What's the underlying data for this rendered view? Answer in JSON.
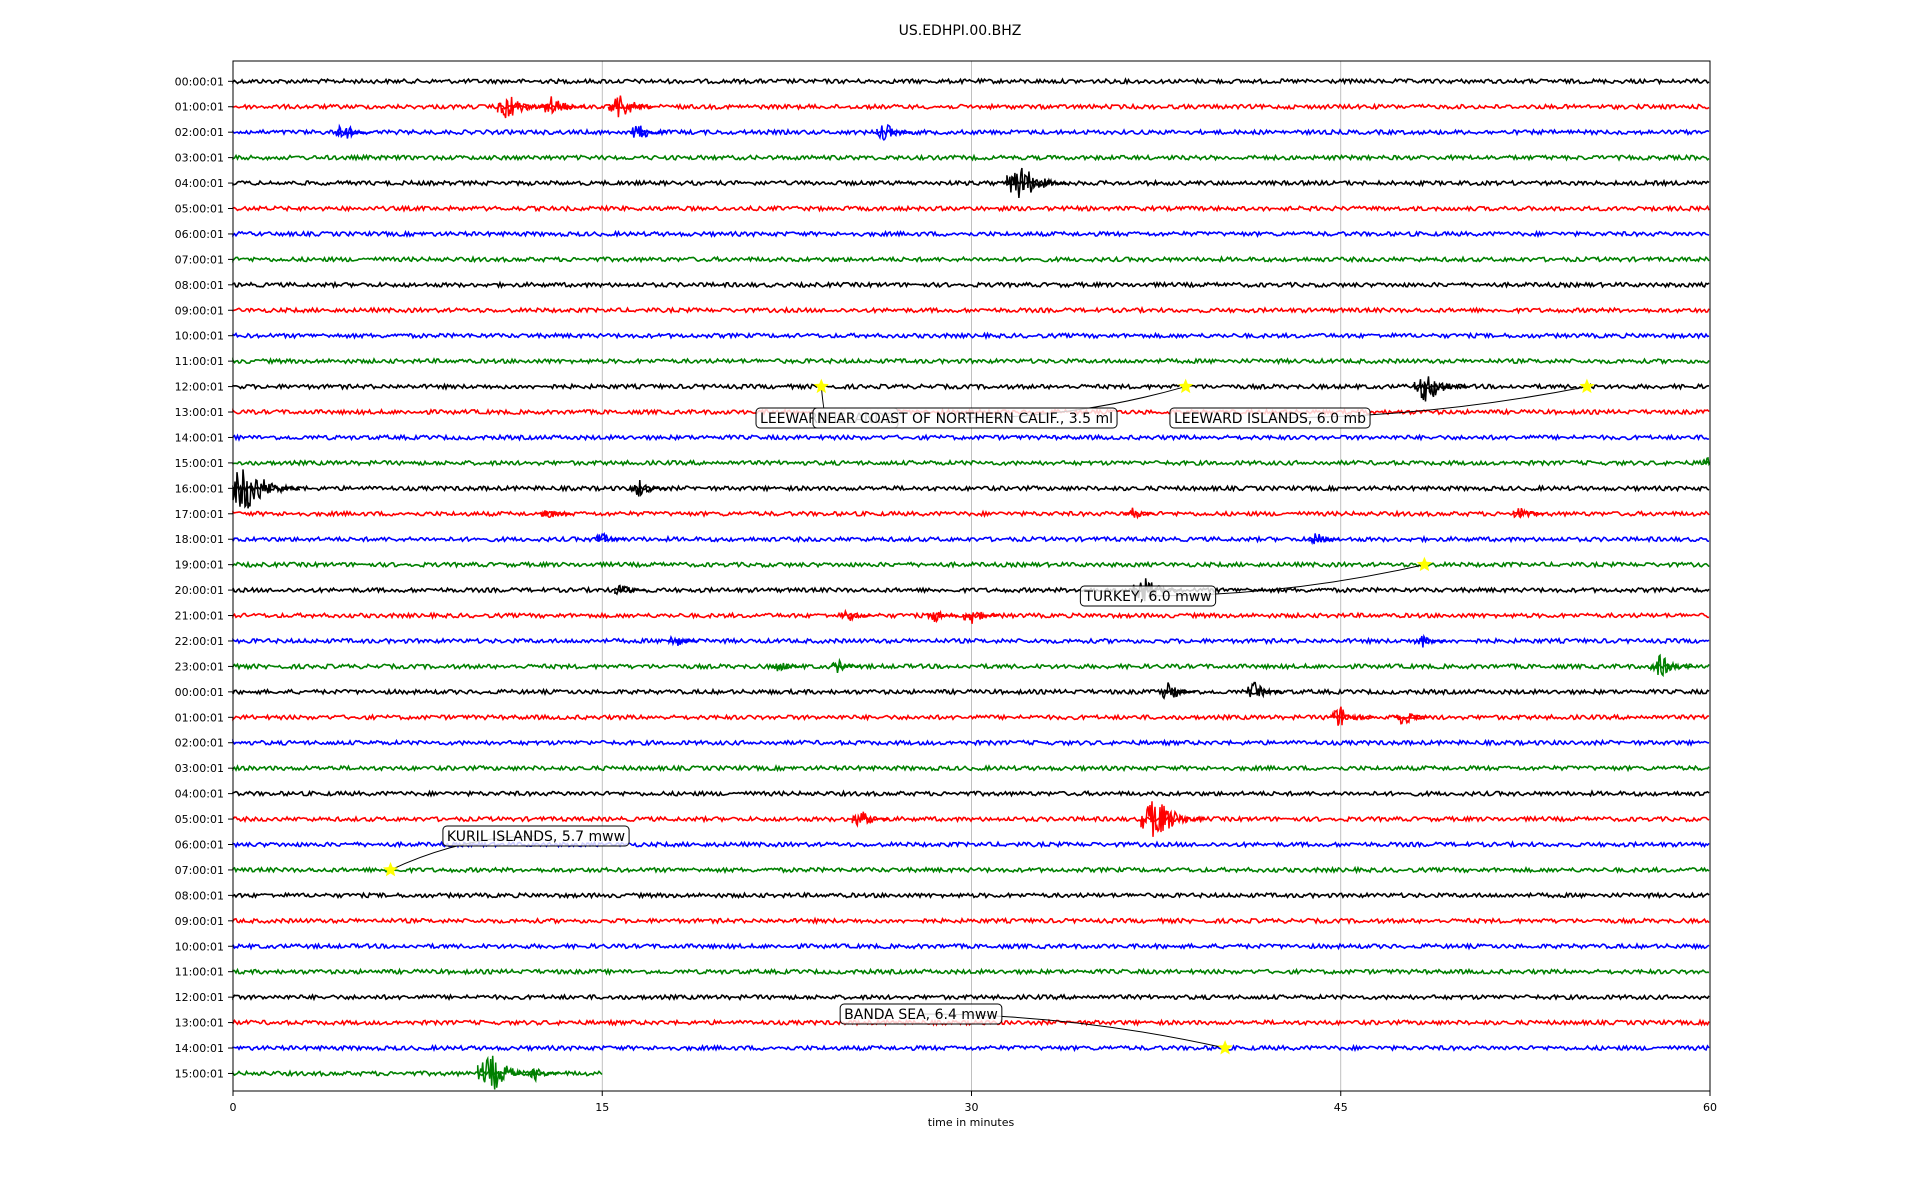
{
  "chart_data": {
    "type": "line",
    "title": "US.EDHPI.00.BHZ",
    "xlabel": "time in minutes",
    "xlim": [
      0,
      60
    ],
    "x_ticks": [
      "0",
      "15",
      "30",
      "45",
      "60"
    ],
    "grid": "vertical",
    "colors": [
      "#000000",
      "#ff0000",
      "#0000ff",
      "#008000"
    ],
    "row_labels": [
      "00:00:01",
      "01:00:01",
      "02:00:01",
      "03:00:01",
      "04:00:01",
      "05:00:01",
      "06:00:01",
      "07:00:01",
      "08:00:01",
      "09:00:01",
      "10:00:01",
      "11:00:01",
      "12:00:01",
      "13:00:01",
      "14:00:01",
      "15:00:01",
      "16:00:01",
      "17:00:01",
      "18:00:01",
      "19:00:01",
      "20:00:01",
      "21:00:01",
      "22:00:01",
      "23:00:01",
      "00:00:01",
      "01:00:01",
      "02:00:01",
      "03:00:01",
      "04:00:01",
      "05:00:01",
      "06:00:01",
      "07:00:01",
      "08:00:01",
      "09:00:01",
      "10:00:01",
      "11:00:01",
      "12:00:01",
      "13:00:01",
      "14:00:01",
      "15:00:01"
    ],
    "last_row_end_minute": 15,
    "bursts": [
      {
        "row": 1,
        "minute": 11.2,
        "amp": 3
      },
      {
        "row": 1,
        "minute": 13,
        "amp": 2.5
      },
      {
        "row": 1,
        "minute": 15.7,
        "amp": 3
      },
      {
        "row": 2,
        "minute": 4.5,
        "amp": 2
      },
      {
        "row": 2,
        "minute": 16.5,
        "amp": 2
      },
      {
        "row": 2,
        "minute": 26.5,
        "amp": 2
      },
      {
        "row": 4,
        "minute": 32,
        "amp": 4
      },
      {
        "row": 12,
        "minute": 48.5,
        "amp": 3.5
      },
      {
        "row": 15,
        "minute": 60,
        "amp": 1.5
      },
      {
        "row": 16,
        "minute": 0.5,
        "amp": 5
      },
      {
        "row": 16,
        "minute": 16.5,
        "amp": 2
      },
      {
        "row": 17,
        "minute": 12.8,
        "amp": 1.5
      },
      {
        "row": 17,
        "minute": 36.5,
        "amp": 1.5
      },
      {
        "row": 17,
        "minute": 52.3,
        "amp": 1.5
      },
      {
        "row": 18,
        "minute": 15,
        "amp": 1.5
      },
      {
        "row": 18,
        "minute": 44,
        "amp": 1.5
      },
      {
        "row": 20,
        "minute": 15.8,
        "amp": 1.5
      },
      {
        "row": 20,
        "minute": 37,
        "amp": 3
      },
      {
        "row": 21,
        "minute": 25,
        "amp": 1.5
      },
      {
        "row": 21,
        "minute": 28.5,
        "amp": 1.5
      },
      {
        "row": 21,
        "minute": 30,
        "amp": 2
      },
      {
        "row": 22,
        "minute": 18,
        "amp": 1.5
      },
      {
        "row": 22,
        "minute": 48.3,
        "amp": 1.5
      },
      {
        "row": 23,
        "minute": 22.2,
        "amp": 1.5
      },
      {
        "row": 23,
        "minute": 24.6,
        "amp": 1.5
      },
      {
        "row": 23,
        "minute": 58,
        "amp": 2.5
      },
      {
        "row": 24,
        "minute": 38,
        "amp": 2
      },
      {
        "row": 24,
        "minute": 41.5,
        "amp": 2
      },
      {
        "row": 25,
        "minute": 45,
        "amp": 2.5
      },
      {
        "row": 25,
        "minute": 47.5,
        "amp": 2
      },
      {
        "row": 29,
        "minute": 25.5,
        "amp": 2
      },
      {
        "row": 29,
        "minute": 37.5,
        "amp": 4.5
      },
      {
        "row": 39,
        "minute": 10.5,
        "amp": 4
      },
      {
        "row": 39,
        "minute": 12.3,
        "amp": 1.5
      }
    ],
    "annotations": [
      {
        "text": "LEEWARD ISLANDS",
        "row": 12,
        "minute": 23.9
      },
      {
        "text": "NEAR COAST OF NORTHERN CALIF., 3.5 ml",
        "row": 12,
        "minute": 38.7
      },
      {
        "text": "LEEWARD ISLANDS, 6.0 mb",
        "row": 12,
        "minute": 55
      },
      {
        "text": "TURKEY, 6.0 mww",
        "row": 19,
        "minute": 48.4
      },
      {
        "text": "KURIL ISLANDS, 5.7 mww",
        "row": 31,
        "minute": 6.4
      },
      {
        "text": "BANDA SEA, 6.4 mww",
        "row": 38,
        "minute": 40.3
      }
    ]
  }
}
